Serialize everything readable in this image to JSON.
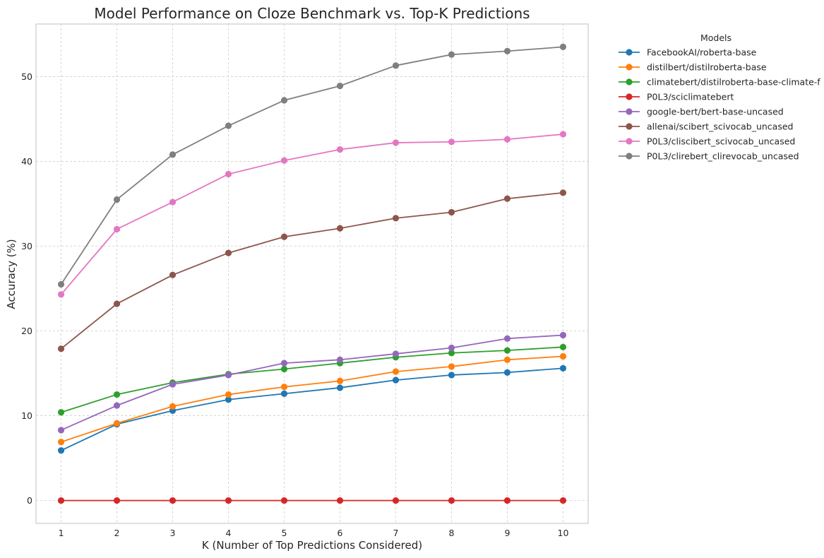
{
  "chart_data": {
    "type": "line",
    "title": "Model Performance on Cloze Benchmark vs. Top-K Predictions",
    "xlabel": "K (Number of Top Predictions Considered)",
    "ylabel": "Accuracy (%)",
    "x": [
      1,
      2,
      3,
      4,
      5,
      6,
      7,
      8,
      9,
      10
    ],
    "xlim": [
      0.55,
      10.45
    ],
    "ylim": [
      -2.7,
      56.2
    ],
    "yticks": [
      0,
      10,
      20,
      30,
      40,
      50
    ],
    "grid": true,
    "legend": {
      "title": "Models",
      "placement": "outside-top-right"
    },
    "series": [
      {
        "name": "FacebookAI/roberta-base",
        "color": "#1f77b4",
        "values": [
          5.9,
          9.0,
          10.6,
          11.9,
          12.6,
          13.3,
          14.2,
          14.8,
          15.1,
          15.6
        ]
      },
      {
        "name": "distilbert/distilroberta-base",
        "color": "#ff7f0e",
        "values": [
          6.9,
          9.1,
          11.1,
          12.5,
          13.4,
          14.1,
          15.2,
          15.8,
          16.6,
          17.0
        ]
      },
      {
        "name": "climatebert/distilroberta-base-climate-f",
        "color": "#2ca02c",
        "values": [
          10.4,
          12.5,
          13.9,
          14.9,
          15.5,
          16.2,
          16.9,
          17.4,
          17.7,
          18.1
        ]
      },
      {
        "name": "P0L3/sciclimatebert",
        "color": "#d62728",
        "values": [
          0,
          0,
          0,
          0,
          0,
          0,
          0,
          0,
          0,
          0
        ]
      },
      {
        "name": "google-bert/bert-base-uncased",
        "color": "#9467bd",
        "values": [
          8.3,
          11.2,
          13.7,
          14.8,
          16.2,
          16.6,
          17.3,
          18.0,
          19.1,
          19.5
        ]
      },
      {
        "name": "allenai/scibert_scivocab_uncased",
        "color": "#8c564b",
        "values": [
          17.9,
          23.2,
          26.6,
          29.2,
          31.1,
          32.1,
          33.3,
          34.0,
          35.6,
          36.3
        ]
      },
      {
        "name": "P0L3/cliscibert_scivocab_uncased",
        "color": "#e377c2",
        "values": [
          24.3,
          32.0,
          35.2,
          38.5,
          40.1,
          41.4,
          42.2,
          42.3,
          42.6,
          43.2
        ]
      },
      {
        "name": "P0L3/clirebert_clirevocab_uncased",
        "color": "#7f7f7f",
        "values": [
          25.5,
          35.5,
          40.8,
          44.2,
          47.2,
          48.9,
          51.3,
          52.6,
          53.0,
          53.5
        ]
      }
    ]
  }
}
